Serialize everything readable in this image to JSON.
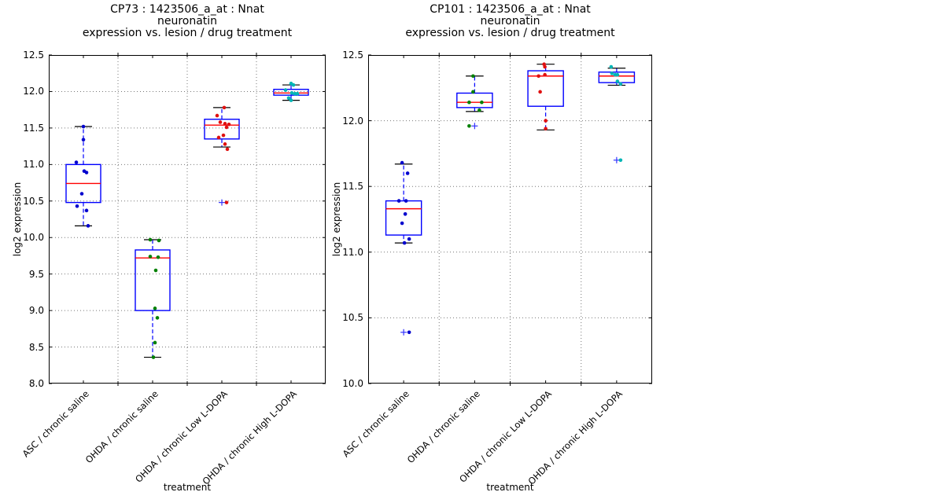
{
  "colors": {
    "box": "#0000ff",
    "median": "#ff0000",
    "whisker": "#0000ff",
    "cap": "#000000",
    "flier": "#3333ff",
    "grid": "#777777",
    "axis": "#000000",
    "scatter": [
      "#0000cd",
      "#008000",
      "#e01010",
      "#00b5b5"
    ]
  },
  "chart_data": [
    {
      "type": "box",
      "title_lines": [
        "CP73 : 1423506_a_at : Nnat",
        "neuronatin",
        "expression vs. lesion / drug treatment"
      ],
      "xlabel": "treatment",
      "ylabel": "log2 expression",
      "ylim": [
        8.0,
        12.5
      ],
      "yticks": [
        "8.0",
        "8.5",
        "9.0",
        "9.5",
        "10.0",
        "10.5",
        "11.0",
        "11.5",
        "12.0",
        "12.5"
      ],
      "grid": true,
      "categories": [
        "ASC / chronic saline",
        "OHDA / chronic saline",
        "OHDA / chronic Low L-DOPA",
        "OHDA / chronic High L-DOPA"
      ],
      "series": [
        {
          "category": "ASC / chronic saline",
          "q1": 10.48,
          "median": 10.74,
          "q3": 11.0,
          "whisker_low": 10.16,
          "whisker_high": 11.52,
          "fliers": [],
          "points": [
            [
              0,
              11.52
            ],
            [
              0,
              11.34
            ],
            [
              -9,
              11.03
            ],
            [
              1,
              10.91
            ],
            [
              4,
              10.89
            ],
            [
              -2,
              10.6
            ],
            [
              -8,
              10.43
            ],
            [
              4,
              10.37
            ],
            [
              6,
              10.16
            ]
          ]
        },
        {
          "category": "OHDA / chronic saline",
          "q1": 9.0,
          "median": 9.72,
          "q3": 9.83,
          "whisker_low": 8.36,
          "whisker_high": 9.97,
          "fliers": [],
          "points": [
            [
              -3,
              9.97
            ],
            [
              8,
              9.96
            ],
            [
              -3,
              9.74
            ],
            [
              7,
              9.73
            ],
            [
              4,
              9.55
            ],
            [
              3,
              9.03
            ],
            [
              6,
              8.9
            ],
            [
              3,
              8.56
            ],
            [
              1,
              8.36
            ]
          ]
        },
        {
          "category": "OHDA / chronic Low L-DOPA",
          "q1": 11.35,
          "median": 11.54,
          "q3": 11.62,
          "whisker_low": 11.24,
          "whisker_high": 11.78,
          "fliers": [
            10.48
          ],
          "points": [
            [
              3,
              11.78
            ],
            [
              -6,
              11.67
            ],
            [
              -2,
              11.58
            ],
            [
              4,
              11.56
            ],
            [
              9,
              11.55
            ],
            [
              6,
              11.51
            ],
            [
              2,
              11.4
            ],
            [
              -4,
              11.37
            ],
            [
              4,
              11.28
            ],
            [
              7,
              11.21
            ],
            [
              6,
              10.48
            ]
          ]
        },
        {
          "category": "OHDA / chronic High L-DOPA",
          "q1": 11.95,
          "median": 11.98,
          "q3": 12.03,
          "whisker_low": 11.88,
          "whisker_high": 12.09,
          "fliers": [],
          "points": [
            [
              0,
              12.11
            ],
            [
              3,
              12.09
            ],
            [
              -7,
              12.02
            ],
            [
              1,
              11.98
            ],
            [
              5,
              11.97
            ],
            [
              8,
              11.97
            ],
            [
              -3,
              11.91
            ],
            [
              0,
              11.88
            ]
          ]
        }
      ]
    },
    {
      "type": "box",
      "title_lines": [
        "CP101 : 1423506_a_at : Nnat",
        "neuronatin",
        "expression vs. lesion / drug treatment"
      ],
      "xlabel": "treatment",
      "ylabel": "log2 expression",
      "ylim": [
        10.0,
        12.5
      ],
      "yticks": [
        "10.0",
        "10.5",
        "11.0",
        "11.5",
        "12.0",
        "12.5"
      ],
      "grid": true,
      "categories": [
        "ASC / chronic saline",
        "OHDA / chronic saline",
        "OHDA / chronic Low L-DOPA",
        "OHDA / chronic High L-DOPA"
      ],
      "series": [
        {
          "category": "ASC / chronic saline",
          "q1": 11.13,
          "median": 11.33,
          "q3": 11.39,
          "whisker_low": 11.07,
          "whisker_high": 11.67,
          "fliers": [
            10.39
          ],
          "points": [
            [
              -2,
              11.68
            ],
            [
              5,
              11.6
            ],
            [
              -6,
              11.39
            ],
            [
              3,
              11.39
            ],
            [
              2,
              11.29
            ],
            [
              -2,
              11.22
            ],
            [
              7,
              11.1
            ],
            [
              1,
              11.07
            ],
            [
              7,
              10.39
            ]
          ]
        },
        {
          "category": "OHDA / chronic saline",
          "q1": 12.1,
          "median": 12.14,
          "q3": 12.21,
          "whisker_low": 12.07,
          "whisker_high": 12.34,
          "fliers": [
            11.96
          ],
          "points": [
            [
              -2,
              12.34
            ],
            [
              -2,
              12.22
            ],
            [
              -7,
              12.14
            ],
            [
              9,
              12.14
            ],
            [
              6,
              12.08
            ],
            [
              -7,
              11.96
            ]
          ]
        },
        {
          "category": "OHDA / chronic Low L-DOPA",
          "q1": 12.11,
          "median": 12.34,
          "q3": 12.38,
          "whisker_low": 11.93,
          "whisker_high": 12.43,
          "fliers": [],
          "points": [
            [
              -2,
              12.43
            ],
            [
              -1,
              12.41
            ],
            [
              -1,
              12.35
            ],
            [
              -9,
              12.34
            ],
            [
              -7,
              12.22
            ],
            [
              0,
              12.0
            ],
            [
              0,
              11.94
            ]
          ]
        },
        {
          "category": "OHDA / chronic High L-DOPA",
          "q1": 12.29,
          "median": 12.34,
          "q3": 12.37,
          "whisker_low": 12.27,
          "whisker_high": 12.4,
          "fliers": [
            11.7
          ],
          "points": [
            [
              -7,
              12.41
            ],
            [
              -6,
              12.36
            ],
            [
              -2,
              12.35
            ],
            [
              1,
              12.35
            ],
            [
              1,
              12.3
            ],
            [
              5,
              12.28
            ],
            [
              5,
              11.7
            ]
          ]
        }
      ]
    }
  ]
}
